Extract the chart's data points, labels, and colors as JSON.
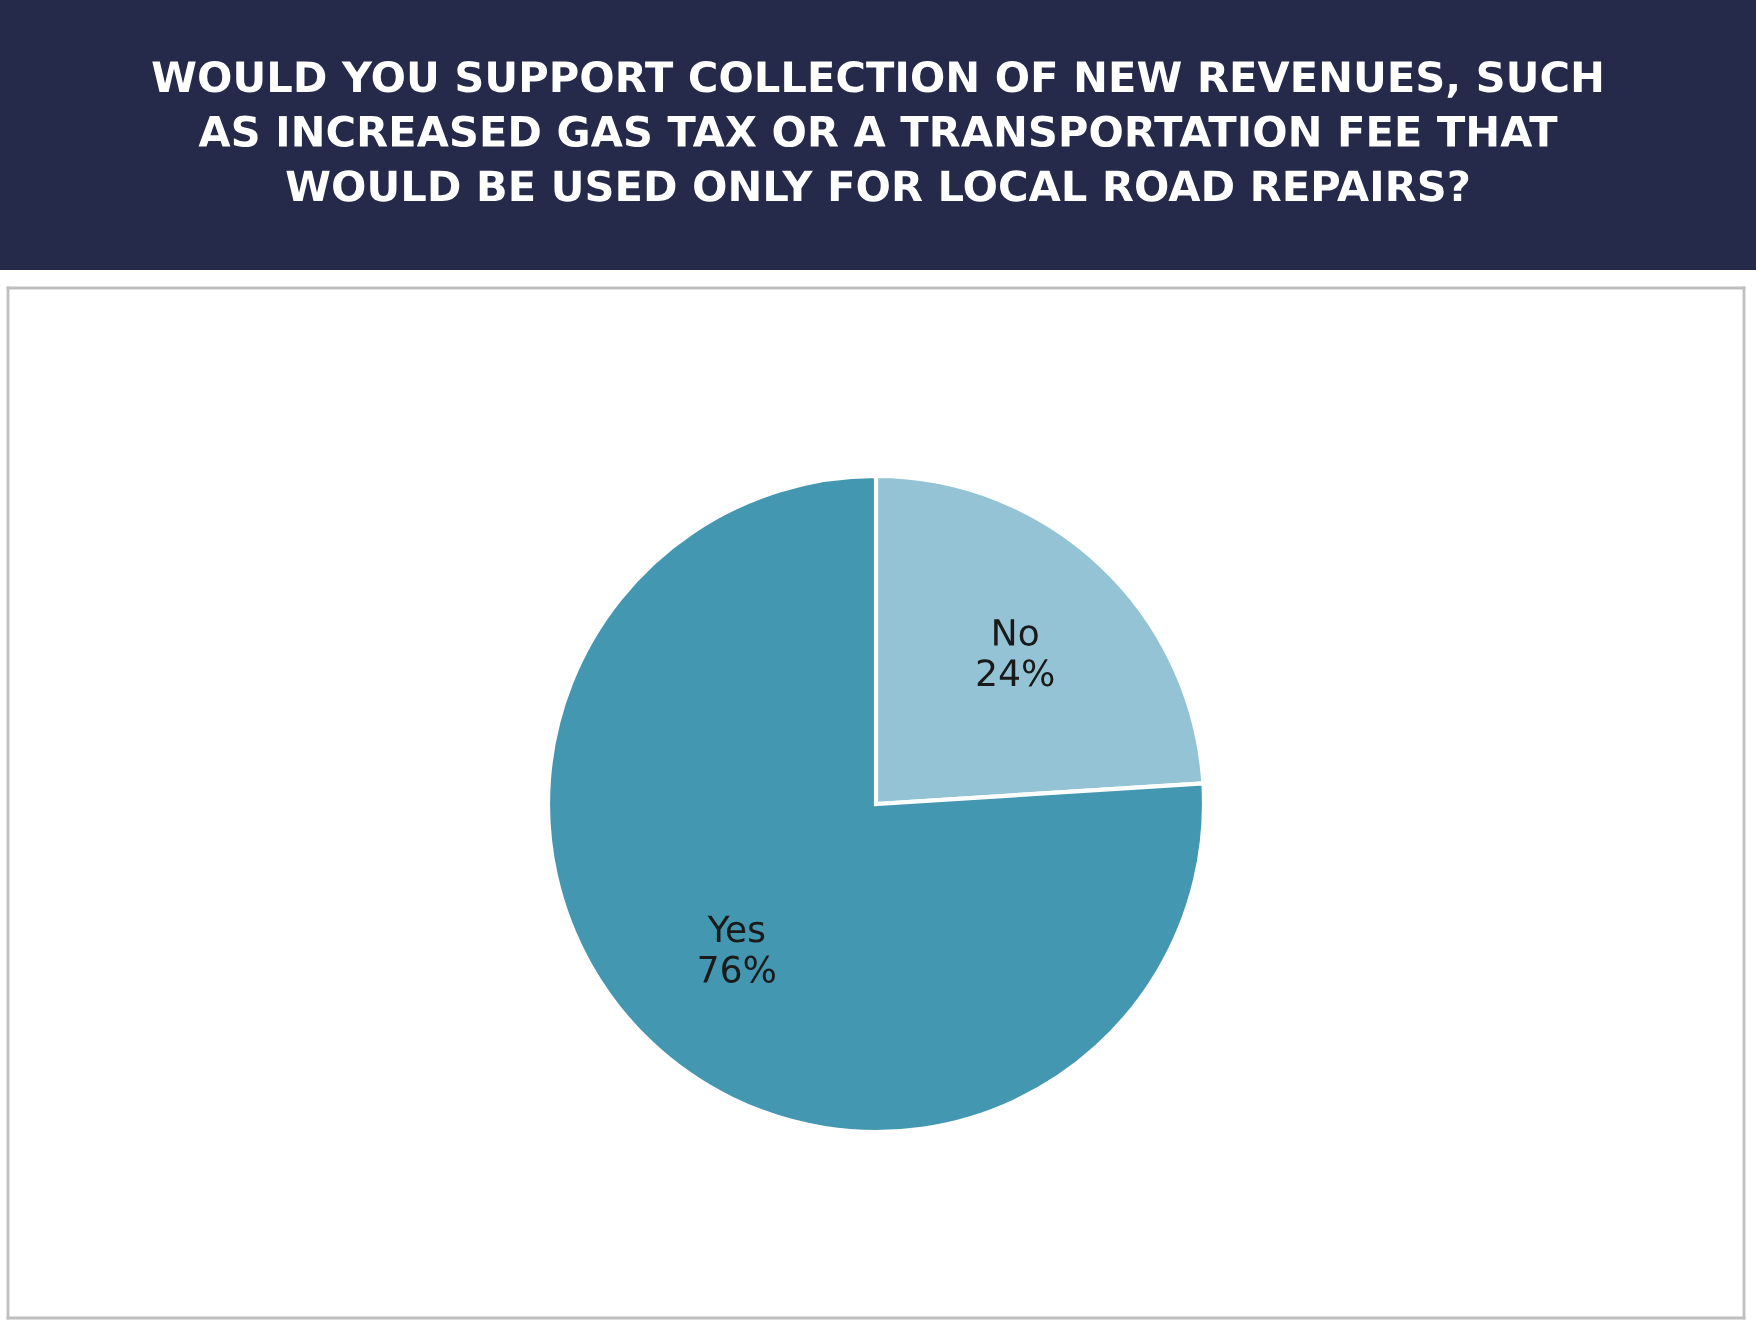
{
  "chart_data": {
    "type": "pie",
    "title": "WOULD YOU SUPPORT COLLECTION OF NEW REVENUES, SUCH\nAS INCREASED GAS TAX OR A TRANSPORTATION FEE THAT\nWOULD BE USED ONLY FOR LOCAL ROAD REPAIRS?",
    "categories": [
      "No",
      "Yes"
    ],
    "values": [
      24,
      76
    ],
    "colors": [
      "#93c3d4",
      "#4397b0"
    ],
    "value_labels": [
      "24%",
      "76%"
    ],
    "legend": false
  }
}
